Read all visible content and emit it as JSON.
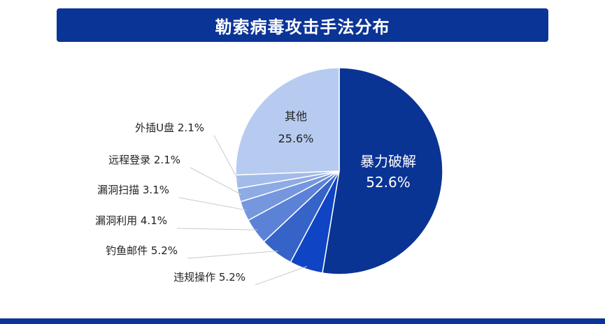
{
  "title": "勒索病毒攻击手法分布",
  "chart_data": {
    "type": "pie",
    "title": "勒索病毒攻击手法分布",
    "slices": [
      {
        "name": "暴力破解",
        "value": 52.6,
        "label": "52.6%",
        "color": "#0a3494",
        "label_color": "#ffffff"
      },
      {
        "name": "违规操作",
        "value": 5.2,
        "label": "5.2%",
        "color": "#0f44c4",
        "label_color": "#222222"
      },
      {
        "name": "钓鱼邮件",
        "value": 5.2,
        "label": "5.2%",
        "color": "#3563c8",
        "label_color": "#222222"
      },
      {
        "name": "漏洞利用",
        "value": 4.1,
        "label": "4.1%",
        "color": "#5b82d6",
        "label_color": "#222222"
      },
      {
        "name": "漏洞扫描",
        "value": 3.1,
        "label": "3.1%",
        "color": "#7597de",
        "label_color": "#222222"
      },
      {
        "name": "远程登录",
        "value": 2.1,
        "label": "2.1%",
        "color": "#8dabe4",
        "label_color": "#222222"
      },
      {
        "name": "外插U盘",
        "value": 2.1,
        "label": "2.1%",
        "color": "#a2bbe9",
        "label_color": "#222222"
      },
      {
        "name": "其他",
        "value": 25.6,
        "label": "25.6%",
        "color": "#b6cbef",
        "label_color": "#222222"
      }
    ],
    "start": "12 o'clock",
    "direction": "clockwise",
    "legend": "none"
  }
}
